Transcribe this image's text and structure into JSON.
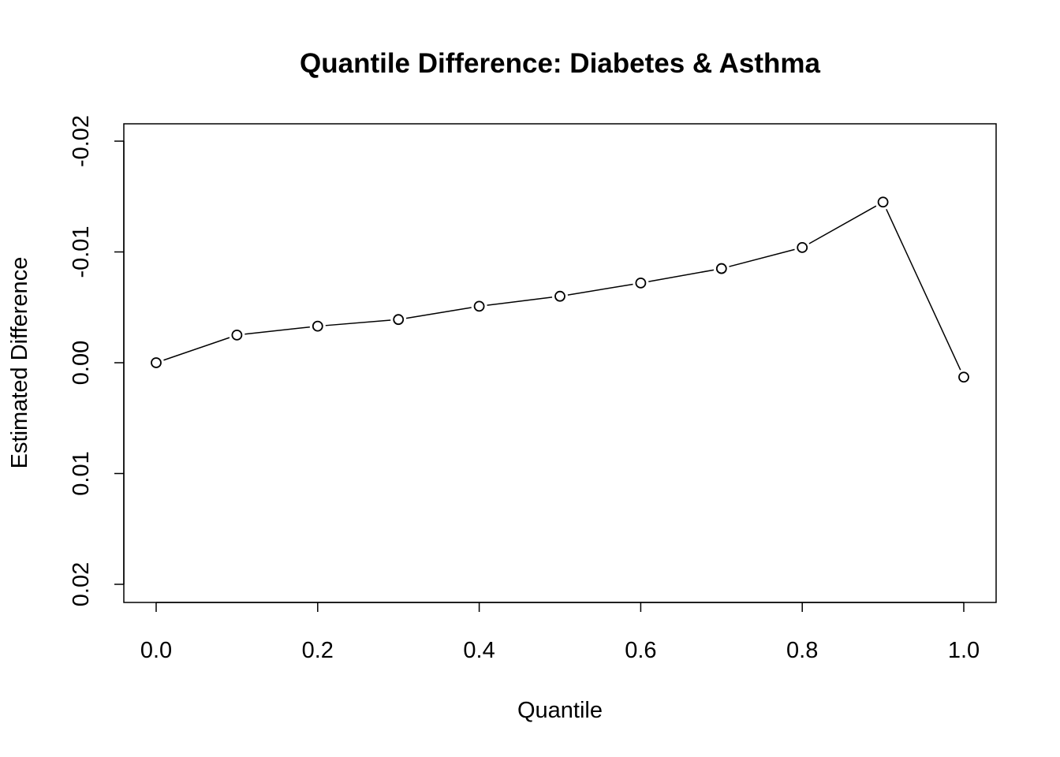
{
  "chart_data": {
    "type": "line",
    "title": "Quantile Difference: Diabetes & Asthma",
    "xlabel": "Quantile",
    "ylabel": "Estimated Difference",
    "xlim": [
      0.0,
      1.0
    ],
    "ylim": [
      0.02,
      -0.02
    ],
    "y_axis_reversed": true,
    "grid": false,
    "x_ticks": [
      {
        "value": 0.0,
        "label": "0.0"
      },
      {
        "value": 0.2,
        "label": "0.2"
      },
      {
        "value": 0.4,
        "label": "0.4"
      },
      {
        "value": 0.6,
        "label": "0.6"
      },
      {
        "value": 0.8,
        "label": "0.8"
      },
      {
        "value": 1.0,
        "label": "1.0"
      }
    ],
    "y_ticks": [
      {
        "value": -0.02,
        "label": "-0.02"
      },
      {
        "value": -0.01,
        "label": "-0.01"
      },
      {
        "value": 0.0,
        "label": "0.00"
      },
      {
        "value": 0.01,
        "label": "0.01"
      },
      {
        "value": 0.02,
        "label": "0.02"
      }
    ],
    "series": [
      {
        "x": [
          0.0,
          0.1,
          0.2,
          0.3,
          0.4,
          0.5,
          0.6,
          0.7,
          0.8,
          0.9,
          1.0
        ],
        "values": [
          0.0,
          -0.0025,
          -0.0033,
          -0.0039,
          -0.0051,
          -0.006,
          -0.0072,
          -0.0085,
          -0.0104,
          -0.0145,
          0.0013
        ],
        "marker": "open-circle",
        "color": "#000000"
      }
    ]
  }
}
